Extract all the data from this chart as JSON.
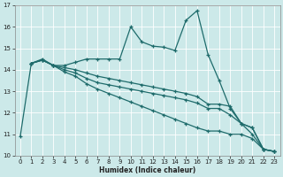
{
  "xlabel": "Humidex (Indice chaleur)",
  "xlim": [
    -0.5,
    23.5
  ],
  "ylim": [
    10,
    17
  ],
  "yticks": [
    10,
    11,
    12,
    13,
    14,
    15,
    16,
    17
  ],
  "xticks": [
    0,
    1,
    2,
    3,
    4,
    5,
    6,
    7,
    8,
    9,
    10,
    11,
    12,
    13,
    14,
    15,
    16,
    17,
    18,
    19,
    20,
    21,
    22,
    23
  ],
  "bg_color": "#cce9e9",
  "line_color": "#1e6b6b",
  "grid_color": "#ffffff",
  "lines": [
    {
      "x": [
        0,
        1,
        2,
        3,
        4,
        5,
        6,
        7,
        8,
        9,
        10,
        11,
        12,
        13,
        14,
        15,
        16,
        17,
        18,
        19,
        20,
        21,
        22,
        23
      ],
      "y": [
        10.9,
        14.3,
        14.5,
        14.2,
        14.2,
        14.35,
        14.5,
        14.5,
        14.5,
        14.5,
        16.0,
        15.3,
        15.1,
        15.05,
        14.9,
        16.3,
        16.75,
        14.7,
        13.5,
        12.2,
        11.5,
        11.3,
        10.3,
        10.2
      ]
    },
    {
      "x": [
        1,
        2,
        3,
        4,
        5,
        6,
        7,
        8,
        9,
        10,
        11,
        12,
        13,
        14,
        15,
        16,
        17,
        18,
        19,
        20,
        21,
        22,
        23
      ],
      "y": [
        14.3,
        14.45,
        14.2,
        14.1,
        14.0,
        13.85,
        13.7,
        13.6,
        13.5,
        13.4,
        13.3,
        13.2,
        13.1,
        13.0,
        12.9,
        12.75,
        12.4,
        12.4,
        12.3,
        11.5,
        11.3,
        10.3,
        10.2
      ]
    },
    {
      "x": [
        1,
        2,
        3,
        4,
        5,
        6,
        7,
        8,
        9,
        10,
        11,
        12,
        13,
        14,
        15,
        16,
        17,
        18,
        19,
        20,
        21,
        22,
        23
      ],
      "y": [
        14.3,
        14.45,
        14.2,
        14.0,
        13.85,
        13.6,
        13.4,
        13.3,
        13.2,
        13.1,
        13.0,
        12.9,
        12.8,
        12.7,
        12.6,
        12.45,
        12.2,
        12.2,
        11.9,
        11.5,
        11.0,
        10.3,
        10.2
      ]
    },
    {
      "x": [
        1,
        2,
        3,
        4,
        5,
        6,
        7,
        8,
        9,
        10,
        11,
        12,
        13,
        14,
        15,
        16,
        17,
        18,
        19,
        20,
        21,
        22,
        23
      ],
      "y": [
        14.3,
        14.45,
        14.2,
        13.9,
        13.7,
        13.35,
        13.1,
        12.9,
        12.7,
        12.5,
        12.3,
        12.1,
        11.9,
        11.7,
        11.5,
        11.3,
        11.15,
        11.15,
        11.0,
        11.0,
        10.8,
        10.3,
        10.2
      ]
    }
  ]
}
